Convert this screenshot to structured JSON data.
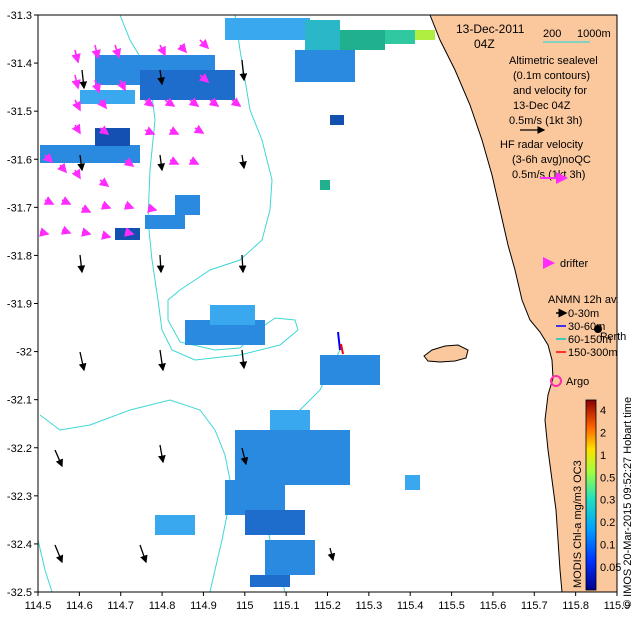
{
  "map": {
    "lon_range": [
      114.5,
      115.9
    ],
    "lat_range": [
      -32.5,
      -31.3
    ],
    "x_ticks": [
      "114.5",
      "114.6",
      "114.7",
      "114.8",
      "114.9",
      "115",
      "115.1",
      "115.2",
      "115.3",
      "115.4",
      "115.5",
      "115.6",
      "115.7",
      "115.8",
      "115.9"
    ],
    "y_ticks": [
      "-31.3",
      "-31.4",
      "-31.5",
      "-31.6",
      "-31.7",
      "-31.8",
      "-31.9",
      "-32",
      "-32.1",
      "-32.2",
      "-32.3",
      "-32.4",
      "-32.5"
    ],
    "colors": {
      "land": "#fbc89e",
      "contour": "#3fd6d6",
      "hf_arrow": "#ff2bff",
      "coast": "#000000"
    }
  },
  "legend": {
    "date": "13-Dec-2011",
    "time": "04Z",
    "depth_200": "200",
    "depth_1000": "1000m",
    "alt_lines": [
      "Altimetric sealevel",
      "(0.1m contours)",
      "and velocity for",
      "13-Dec 04Z",
      "0.5m/s (1kt 3h)"
    ],
    "hf_lines": [
      "HF radar velocity",
      "(3-6h avg)noQC",
      "0.5m/s (1kt 3h)"
    ],
    "drifter": "drifter",
    "anmn_title": "ANMN 12h av.",
    "anmn_items": [
      {
        "label": "0-30m",
        "color": "#000000"
      },
      {
        "label": "30-60m",
        "color": "#0000ff"
      },
      {
        "label": "60-150m",
        "color": "#00c8c8"
      },
      {
        "label": "150-300m",
        "color": "#ff0000"
      }
    ],
    "perth": "Perth",
    "argo": "Argo",
    "argo_color": "#ff2bb0",
    "colorbar_label": "MODIS Chl-a mg/m3 OC3",
    "colorbar_ticks": [
      "4",
      "2",
      "1",
      "0.5",
      "0.3",
      "0.2",
      "0.1",
      "0.05"
    ],
    "credit": "© IMOS 20-Mar-2015 09:52:27 Hobart time"
  }
}
